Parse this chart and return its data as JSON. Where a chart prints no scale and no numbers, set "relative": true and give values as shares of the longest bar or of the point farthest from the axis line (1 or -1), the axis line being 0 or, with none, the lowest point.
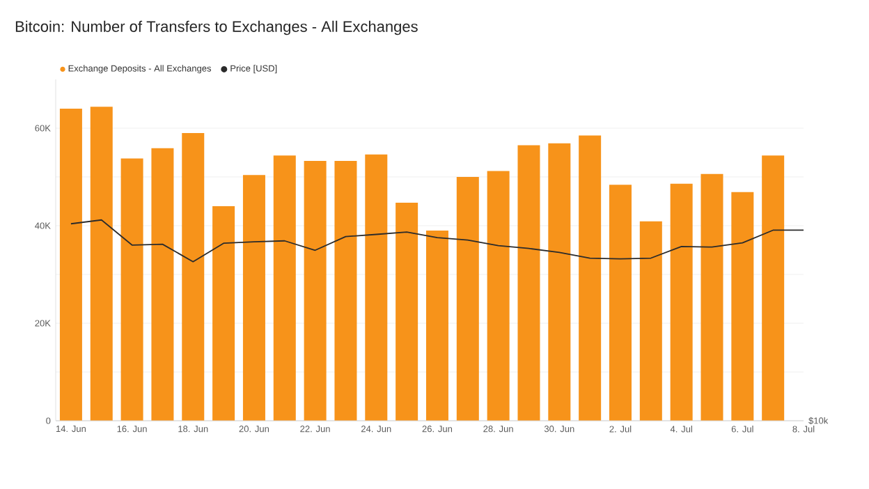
{
  "chart_data": [
    {
      "type": "bar",
      "title": "Bitcoin: Number of Transfers to Exchanges - All Exchanges",
      "categories": [
        "14. Jun",
        null,
        "16. Jun",
        null,
        "18. Jun",
        null,
        "20. Jun",
        null,
        "22. Jun",
        null,
        "24. Jun",
        null,
        "26. Jun",
        null,
        "28. Jun",
        null,
        "30. Jun",
        null,
        "2. Jul",
        null,
        "4. Jul",
        null,
        "6. Jul",
        null,
        "8. Jul"
      ],
      "series": [
        {
          "name": "Exchange Deposits - All Exchanges",
          "color": "#f7931a",
          "values": [
            64000,
            64400,
            53800,
            55900,
            59000,
            44000,
            50400,
            54400,
            53300,
            53300,
            54600,
            44700,
            39000,
            50000,
            51200,
            56500,
            56900,
            58500,
            48400,
            40900,
            48600,
            50600,
            46900,
            54400,
            null
          ]
        }
      ],
      "ylim": [
        0,
        70000
      ],
      "yticks": [
        {
          "value": 0,
          "label": "0"
        },
        {
          "value": 10000,
          "label": null
        },
        {
          "value": 20000,
          "label": "20K"
        },
        {
          "value": 30000,
          "label": null
        },
        {
          "value": 40000,
          "label": "40K"
        },
        {
          "value": 50000,
          "label": null
        },
        {
          "value": 60000,
          "label": "60K"
        }
      ],
      "grid": "y",
      "legend": "top left"
    },
    {
      "type": "line",
      "relative": true,
      "categories": [
        null,
        null,
        null,
        null,
        null,
        null,
        null,
        null,
        null,
        null,
        null,
        null,
        null,
        null,
        null,
        null,
        null,
        null,
        null,
        null,
        null,
        null,
        null,
        null,
        null
      ],
      "series": [
        {
          "name": "Price [USD]",
          "color": "#2b2b2b",
          "values": [
            0.981,
            1,
            0.875,
            0.879,
            0.792,
            0.884,
            0.891,
            0.896,
            0.849,
            0.917,
            0.928,
            0.94,
            0.912,
            0.9,
            0.872,
            0.858,
            0.838,
            0.81,
            0.806,
            0.81,
            0.868,
            0.865,
            0.886,
            0.949,
            0.949
          ]
        }
      ],
      "annotations": [
        "$10k"
      ],
      "legend": "top left"
    }
  ]
}
